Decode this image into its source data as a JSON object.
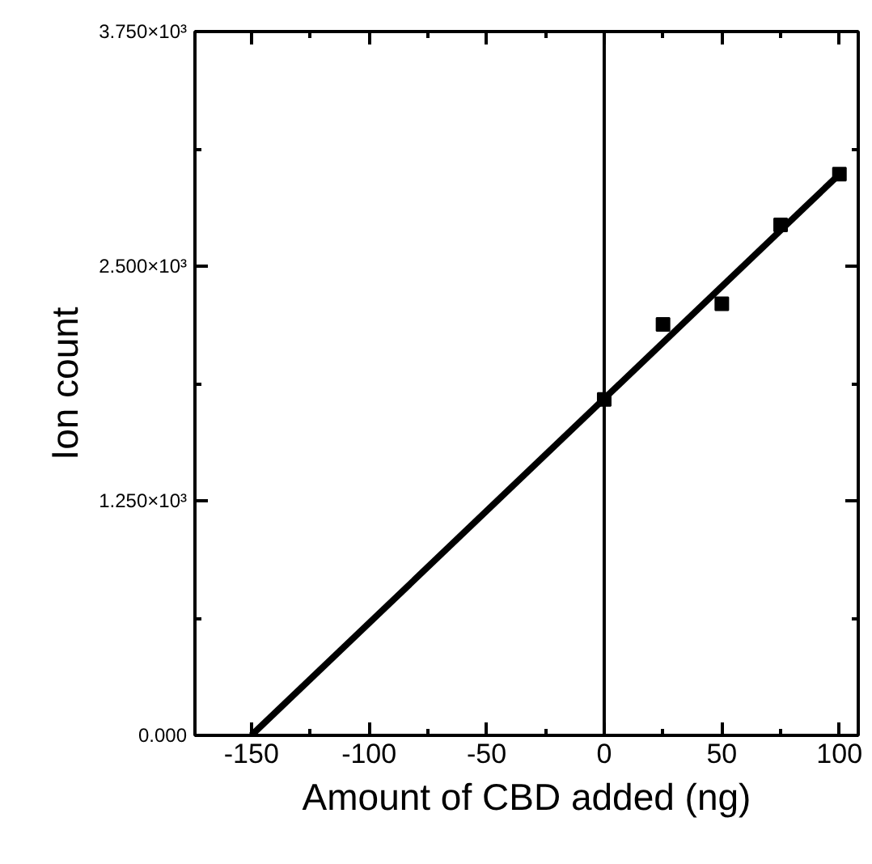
{
  "chart_data": {
    "type": "scatter",
    "xlabel": "Amount of CBD added (ng)",
    "ylabel": "Ion count",
    "series": [
      {
        "color": "#000000",
        "x": [
          0,
          25,
          50,
          75,
          100
        ],
        "values": [
          1790,
          2190,
          2300,
          2720,
          2990
        ],
        "marker": "square"
      },
      {
        "type": "line",
        "color": "#000000",
        "x": [
          -150,
          100
        ],
        "values": [
          0,
          2990
        ],
        "line_style": "solid"
      }
    ],
    "xlim": [
      -174,
      108
    ],
    "ylim": [
      0,
      3750
    ],
    "xticks": [
      -150,
      -100,
      -50,
      0,
      50,
      100
    ],
    "yticks": [
      {
        "value": 0,
        "label": "0.000"
      },
      {
        "value": 1250,
        "label": "1.250×10³"
      },
      {
        "value": 2500,
        "label": "2.500×10³"
      },
      {
        "value": 3750,
        "label": "3.750×10³"
      }
    ],
    "ref_lines": [
      {
        "axis": "x",
        "value": 0,
        "color": "#000000",
        "line_style": "solid"
      }
    ],
    "grid": false
  }
}
